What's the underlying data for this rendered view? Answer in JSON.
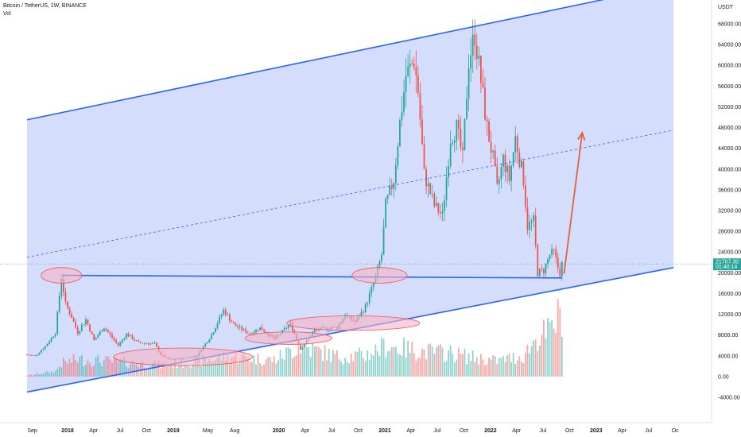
{
  "header": {
    "symbol": "Bitcoin / TetherUS, 1W, BINANCE",
    "vol_label": "Vol"
  },
  "colors": {
    "up": "#26a69a",
    "down": "#ef5350",
    "channel_fill": "#cdd8fb",
    "channel_line": "#2962ff",
    "arrow": "#e0623c",
    "highlight": "#f7b3c4",
    "price_tag": "#26a69a"
  },
  "chart_data": {
    "type": "candlestick",
    "currency_label": "USDT",
    "price_tag": {
      "value": 21707.3,
      "text": "21707.30",
      "countdown": "01:40:14"
    },
    "x_ticks": [
      "Sep",
      "2018",
      "Apr",
      "Jul",
      "Oct",
      "2019",
      "May",
      "Aug",
      "2020",
      "Apr",
      "Jul",
      "Oct",
      "2021",
      "Apr",
      "Jul",
      "Oct",
      "2022",
      "Apr",
      "Jul",
      "Oct",
      "2023",
      "Apr",
      "Jul",
      "Oc"
    ],
    "y_ticks": [
      "68000.00",
      "64000.00",
      "60000.00",
      "56000.00",
      "52000.00",
      "48000.00",
      "44000.00",
      "40000.00",
      "36000.00",
      "32000.00",
      "28000.00",
      "24000.00",
      "20000.00",
      "16000.00",
      "12000.00",
      "8000.00",
      "4000.00",
      "0.00",
      "-4000.00"
    ],
    "ohlc_keypoints": [
      [
        "2017-08-14",
        4200
      ],
      [
        "2017-09-11",
        4000
      ],
      [
        "2017-10-16",
        5800
      ],
      [
        "2017-11-20",
        8500
      ],
      [
        "2017-12-11",
        19200
      ],
      [
        "2017-12-25",
        14000
      ],
      [
        "2018-01-15",
        11500
      ],
      [
        "2018-02-05",
        8500
      ],
      [
        "2018-03-05",
        11000
      ],
      [
        "2018-04-02",
        7000
      ],
      [
        "2018-05-07",
        9500
      ],
      [
        "2018-06-25",
        6000
      ],
      [
        "2018-07-23",
        8200
      ],
      [
        "2018-09-03",
        6500
      ],
      [
        "2018-10-29",
        6300
      ],
      [
        "2018-11-19",
        4200
      ],
      [
        "2018-12-17",
        3300
      ],
      [
        "2019-02-04",
        3500
      ],
      [
        "2019-03-25",
        4100
      ],
      [
        "2019-05-13",
        8000
      ],
      [
        "2019-06-24",
        12800
      ],
      [
        "2019-07-29",
        10000
      ],
      [
        "2019-09-23",
        8200
      ],
      [
        "2019-10-28",
        9400
      ],
      [
        "2019-12-16",
        7200
      ],
      [
        "2020-02-10",
        10200
      ],
      [
        "2020-03-16",
        5300
      ],
      [
        "2020-05-04",
        9000
      ],
      [
        "2020-07-20",
        9500
      ],
      [
        "2020-08-17",
        11800
      ],
      [
        "2020-09-21",
        10500
      ],
      [
        "2020-10-26",
        13500
      ],
      [
        "2020-11-30",
        19000
      ],
      [
        "2020-12-21",
        23500
      ],
      [
        "2021-01-04",
        33000
      ],
      [
        "2021-02-01",
        38000
      ],
      [
        "2021-02-22",
        49000
      ],
      [
        "2021-03-15",
        58000
      ],
      [
        "2021-04-12",
        61000
      ],
      [
        "2021-04-26",
        55000
      ],
      [
        "2021-05-17",
        39000
      ],
      [
        "2021-06-21",
        33000
      ],
      [
        "2021-07-19",
        31000
      ],
      [
        "2021-08-16",
        46000
      ],
      [
        "2021-09-06",
        48000
      ],
      [
        "2021-09-27",
        42000
      ],
      [
        "2021-10-18",
        61000
      ],
      [
        "2021-11-08",
        66000
      ],
      [
        "2021-11-29",
        57000
      ],
      [
        "2021-12-20",
        48000
      ],
      [
        "2022-01-10",
        42000
      ],
      [
        "2022-01-24",
        36000
      ],
      [
        "2022-02-14",
        42000
      ],
      [
        "2022-03-07",
        38000
      ],
      [
        "2022-03-28",
        46000
      ],
      [
        "2022-04-25",
        38000
      ],
      [
        "2022-05-09",
        29000
      ],
      [
        "2022-05-30",
        30000
      ],
      [
        "2022-06-13",
        20000
      ],
      [
        "2022-07-04",
        20500
      ],
      [
        "2022-07-25",
        23500
      ],
      [
        "2022-08-08",
        24000
      ],
      [
        "2022-08-22",
        21000
      ],
      [
        "2022-08-29",
        20000
      ],
      [
        "2022-09-05",
        21707
      ]
    ],
    "volume_keypoints": [
      [
        "2017-08-14",
        200
      ],
      [
        "2017-11-20",
        1000
      ],
      [
        "2017-12-11",
        2500
      ],
      [
        "2018-02-05",
        3300
      ],
      [
        "2018-06-25",
        2800
      ],
      [
        "2018-11-19",
        2200
      ],
      [
        "2019-05-13",
        3300
      ],
      [
        "2019-07-01",
        3900
      ],
      [
        "2019-12-16",
        3200
      ],
      [
        "2020-03-16",
        6000
      ],
      [
        "2020-07-20",
        3800
      ],
      [
        "2020-10-26",
        4100
      ],
      [
        "2021-01-04",
        5900
      ],
      [
        "2021-05-17",
        4800
      ],
      [
        "2021-08-16",
        4500
      ],
      [
        "2021-11-08",
        3600
      ],
      [
        "2022-01-24",
        3000
      ],
      [
        "2022-04-25",
        4000
      ],
      [
        "2022-06-13",
        7600
      ],
      [
        "2022-07-25",
        8600
      ],
      [
        "2022-09-05",
        12500
      ]
    ],
    "annotations": [
      {
        "kind": "channel_upper",
        "from": [
          "2017-08-14",
          49500
        ],
        "to": [
          "2023-09-25",
          75500
        ]
      },
      {
        "kind": "channel_mid",
        "from": [
          "2017-08-14",
          23000
        ],
        "to": [
          "2023-09-25",
          47500
        ]
      },
      {
        "kind": "channel_lower",
        "from": [
          "2017-08-14",
          -3000
        ],
        "to": [
          "2023-09-25",
          21000
        ]
      },
      {
        "kind": "support_line",
        "from": [
          "2017-12-11",
          19500
        ],
        "to": [
          "2022-09-05",
          19000
        ]
      },
      {
        "kind": "arrow",
        "from": [
          "2022-09-12",
          19800
        ],
        "to": [
          "2022-11-14",
          47000
        ]
      },
      {
        "kind": "ellipse",
        "center": [
          "2017-12-11",
          19500
        ],
        "rx_days": 70,
        "ry": 1500
      },
      {
        "kind": "ellipse",
        "center": [
          "2020-12-14",
          19500
        ],
        "rx_days": 95,
        "ry": 1500
      },
      {
        "kind": "ellipse",
        "center": [
          "2019-02-04",
          3800
        ],
        "rx_days": 240,
        "ry": 1700
      },
      {
        "kind": "ellipse",
        "center": [
          "2020-02-03",
          7400
        ],
        "rx_days": 150,
        "ry": 1200
      },
      {
        "kind": "ellipse",
        "center": [
          "2020-09-14",
          10300
        ],
        "rx_days": 230,
        "ry": 1400
      }
    ]
  }
}
